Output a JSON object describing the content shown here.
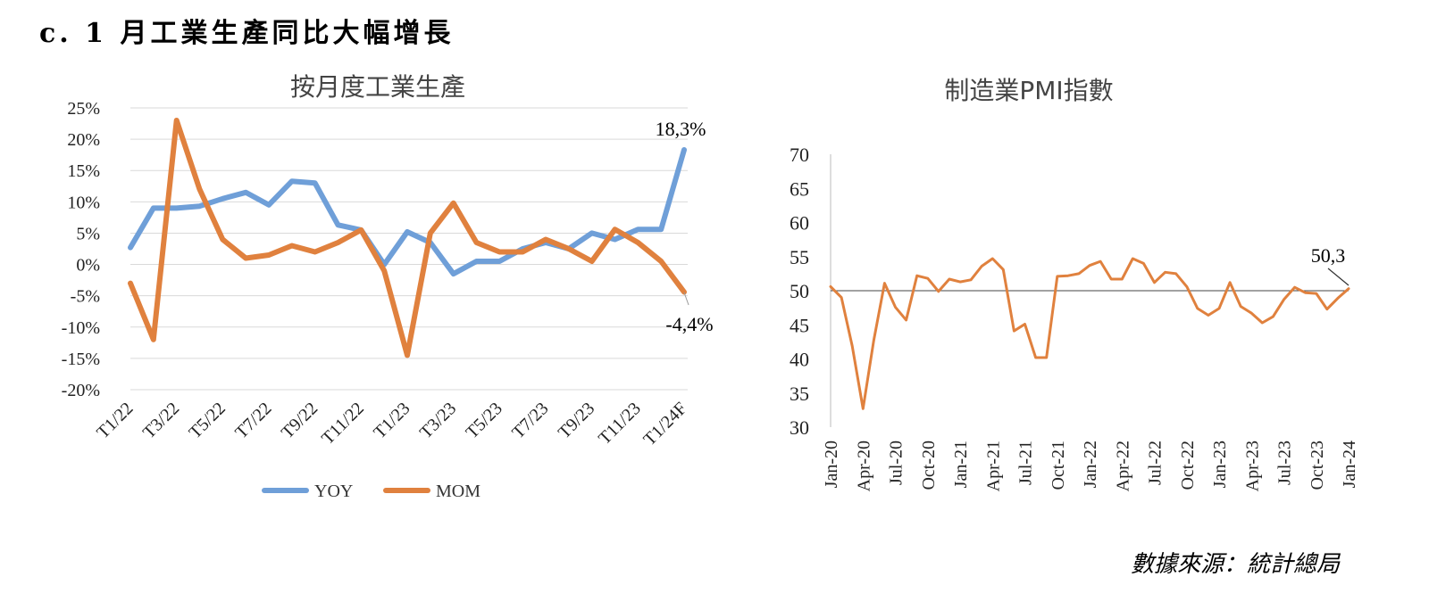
{
  "page": {
    "title": "c. 1 月工業生產同比大幅增長",
    "source": "數據來源：統計總局"
  },
  "chart_data": [
    {
      "type": "line",
      "title": "按月度工業生產",
      "x": [
        "T1/22",
        "T2/22",
        "T3/22",
        "T4/22",
        "T5/22",
        "T6/22",
        "T7/22",
        "T8/22",
        "T9/22",
        "T10/22",
        "T11/22",
        "T12/22",
        "T1/23",
        "T2/23",
        "T3/23",
        "T4/23",
        "T5/23",
        "T6/23",
        "T7/23",
        "T8/23",
        "T9/23",
        "T10/23",
        "T11/23",
        "T12/23",
        "T1/24F"
      ],
      "x_tick_labels": [
        "T1/22",
        "T3/22",
        "T5/22",
        "T7/22",
        "T9/22",
        "T11/22",
        "T1/23",
        "T3/23",
        "T5/23",
        "T7/23",
        "T9/23",
        "T11/23",
        "T1/24F"
      ],
      "series": [
        {
          "name": "YOY",
          "color": "#6f9fd8",
          "values": [
            2.7,
            9.0,
            9.0,
            9.3,
            10.5,
            11.5,
            9.5,
            13.3,
            13.0,
            6.3,
            5.5,
            0.0,
            5.2,
            3.5,
            -1.5,
            0.5,
            0.5,
            2.5,
            3.5,
            2.5,
            5.0,
            4.0,
            5.6,
            5.6,
            18.3
          ]
        },
        {
          "name": "MOM",
          "color": "#e0813e",
          "values": [
            -3.0,
            -12.0,
            23.0,
            12.0,
            4.0,
            1.0,
            1.5,
            3.0,
            2.0,
            3.5,
            5.5,
            -1.0,
            -14.5,
            5.0,
            9.8,
            3.5,
            2.0,
            2.0,
            4.0,
            2.5,
            0.5,
            5.6,
            3.5,
            0.5,
            -4.4
          ]
        }
      ],
      "ylim": [
        -20,
        25
      ],
      "y_ticks": [
        "-20%",
        "-15%",
        "-10%",
        "-5%",
        "0%",
        "5%",
        "10%",
        "15%",
        "20%",
        "25%"
      ],
      "annotations": {
        "yoy_last": "18,3%",
        "mom_last": "-4,4%"
      },
      "grid": true,
      "legend": "bottom"
    },
    {
      "type": "line",
      "title": "制造業PMI指數",
      "x": [
        "Jan-20",
        "Feb-20",
        "Mar-20",
        "Apr-20",
        "May-20",
        "Jun-20",
        "Jul-20",
        "Aug-20",
        "Sep-20",
        "Oct-20",
        "Nov-20",
        "Dec-20",
        "Jan-21",
        "Feb-21",
        "Mar-21",
        "Apr-21",
        "May-21",
        "Jun-21",
        "Jul-21",
        "Aug-21",
        "Sep-21",
        "Oct-21",
        "Nov-21",
        "Dec-21",
        "Jan-22",
        "Feb-22",
        "Mar-22",
        "Apr-22",
        "May-22",
        "Jun-22",
        "Jul-22",
        "Aug-22",
        "Sep-22",
        "Oct-22",
        "Nov-22",
        "Dec-22",
        "Jan-23",
        "Feb-23",
        "Mar-23",
        "Apr-23",
        "May-23",
        "Jun-23",
        "Jul-23",
        "Aug-23",
        "Sep-23",
        "Oct-23",
        "Nov-23",
        "Dec-23",
        "Jan-24"
      ],
      "x_tick_labels": [
        "Jan-20",
        "Apr-20",
        "Jul-20",
        "Oct-20",
        "Jan-21",
        "Apr-21",
        "Jul-21",
        "Oct-21",
        "Jan-22",
        "Apr-22",
        "Jul-22",
        "Oct-22",
        "Jan-23",
        "Apr-23",
        "Jul-23",
        "Oct-23",
        "Jan-24"
      ],
      "series": [
        {
          "color": "#e0813e",
          "values": [
            50.6,
            49.0,
            41.9,
            32.7,
            42.7,
            51.1,
            47.6,
            45.7,
            52.2,
            51.8,
            49.9,
            51.7,
            51.3,
            51.6,
            53.6,
            54.7,
            53.1,
            44.1,
            45.1,
            40.2,
            40.2,
            52.1,
            52.2,
            52.5,
            53.7,
            54.3,
            51.7,
            51.7,
            54.7,
            54.0,
            51.2,
            52.7,
            52.5,
            50.6,
            47.4,
            46.4,
            47.4,
            51.2,
            47.7,
            46.7,
            45.3,
            46.2,
            48.7,
            50.5,
            49.7,
            49.6,
            47.3,
            48.9,
            50.3
          ]
        }
      ],
      "ylim": [
        30,
        70
      ],
      "y_ticks": [
        "30",
        "35",
        "40",
        "45",
        "50",
        "55",
        "60",
        "65",
        "70"
      ],
      "reference_line": 50,
      "annotations": {
        "last": "50,3"
      }
    }
  ]
}
